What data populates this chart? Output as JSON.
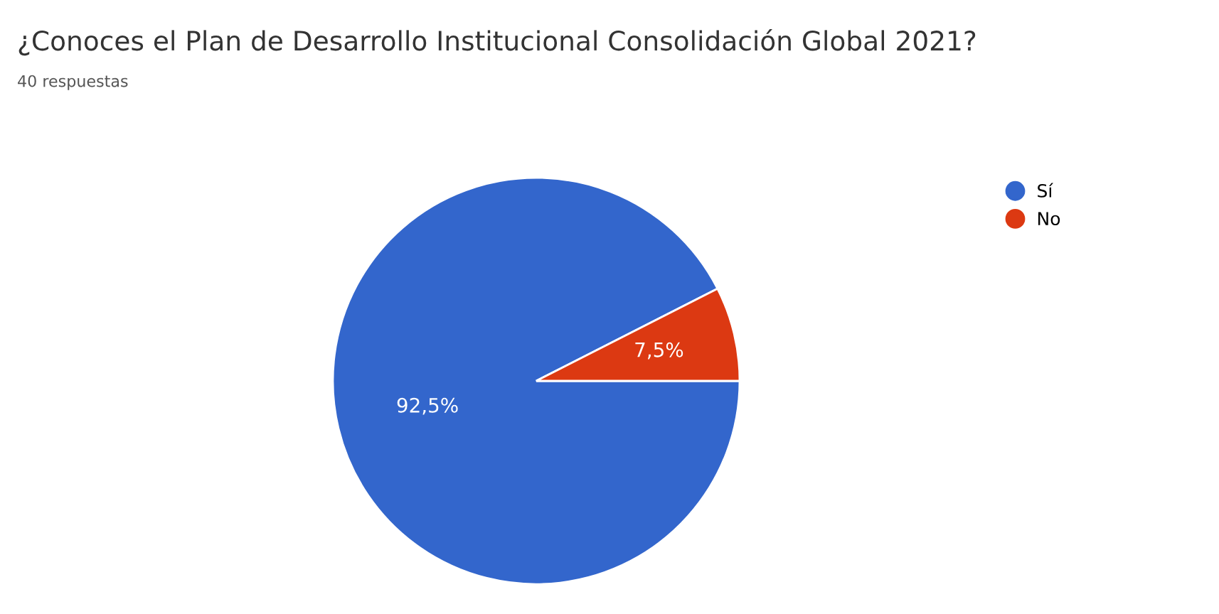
{
  "chart_data": {
    "type": "pie",
    "title": "¿Conoces el Plan de Desarrollo Institucional Consolidación Global 2021?",
    "subtitle": "40 respuestas",
    "categories": [
      "Sí",
      "No"
    ],
    "values": [
      92.5,
      7.5
    ],
    "colors": [
      "#3366cc",
      "#dc3912"
    ],
    "value_labels": [
      "92,5%",
      "7,5%"
    ],
    "legend": "top right"
  }
}
